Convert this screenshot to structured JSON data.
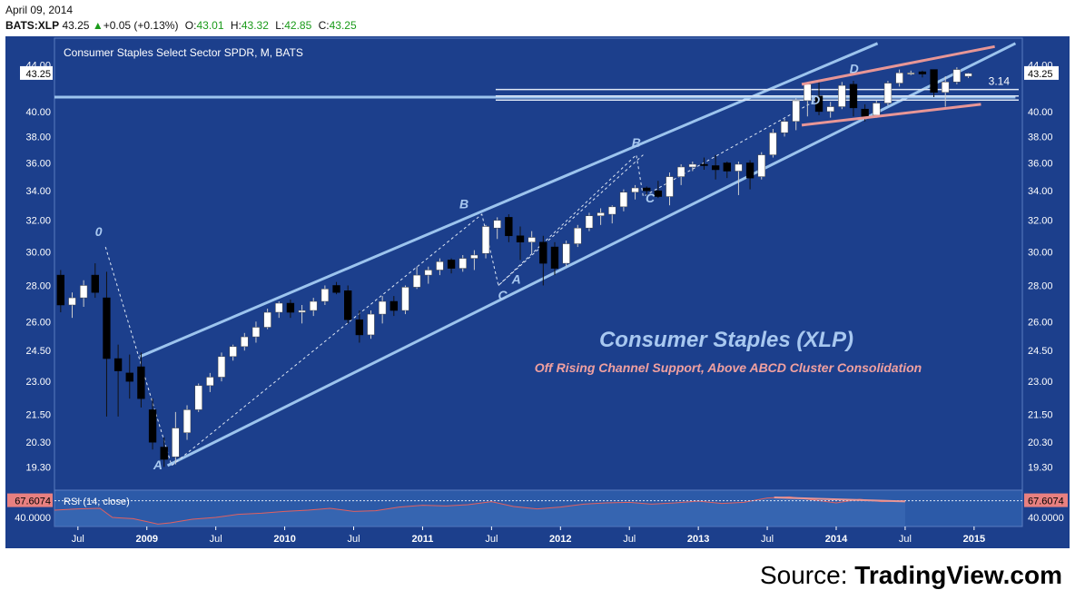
{
  "header": {
    "date": "April 09, 2014",
    "symbol": "BATS:XLP",
    "last": "43.25",
    "change": "+0.05 (+0.13%)",
    "open_label": "O:",
    "open": "43.01",
    "high_label": "H:",
    "high": "43.32",
    "low_label": "L:",
    "low": "42.85",
    "close_label": "C:",
    "close": "43.25"
  },
  "source": {
    "prefix": "Source: ",
    "name": "TradingView.com"
  },
  "colors": {
    "background": "#1c3f8c",
    "candle_up": "#ffffff",
    "candle_down": "#000000",
    "channel": "#9cc4ee",
    "wedge": "#e89696",
    "label_blue": "#a8c8f0",
    "label_pink": "#f0a0a0",
    "rsi_line": "#e06060",
    "quote_up": "#1a9a1a"
  },
  "chart_data": [
    {
      "type": "candlestick",
      "title": "Consumer Staples Select Sector SPDR, M, BATS",
      "last_price_label": "43.25",
      "y_axis": {
        "scale": "log",
        "ticks": [
          "19.30",
          "20.30",
          "21.50",
          "23.00",
          "24.50",
          "26.00",
          "28.00",
          "30.00",
          "32.00",
          "34.00",
          "36.00",
          "38.00",
          "40.00",
          "44.00"
        ],
        "range": [
          18.4,
          46.5
        ]
      },
      "x_axis": {
        "ticks": [
          "Jul",
          "2009",
          "Jul",
          "2010",
          "Jul",
          "2011",
          "Jul",
          "2012",
          "Jul",
          "2013",
          "Jul",
          "2014",
          "Jul",
          "2015"
        ],
        "tick_months": [
          2008.5,
          2009,
          2009.5,
          2010,
          2010.5,
          2011,
          2011.5,
          2012,
          2012.5,
          2013,
          2013.5,
          2014,
          2014.5,
          2015
        ],
        "range": [
          2008.33,
          2015.35
        ]
      },
      "candles": [
        {
          "t": "2008-05",
          "o": 28.6,
          "h": 28.9,
          "l": 26.5,
          "c": 26.9
        },
        {
          "t": "2008-06",
          "o": 26.9,
          "h": 27.6,
          "l": 26.2,
          "c": 27.3
        },
        {
          "t": "2008-07",
          "o": 27.3,
          "h": 28.3,
          "l": 26.8,
          "c": 28.0
        },
        {
          "t": "2008-08",
          "o": 28.6,
          "h": 29.3,
          "l": 27.3,
          "c": 27.6
        },
        {
          "t": "2008-09",
          "o": 27.3,
          "h": 28.8,
          "l": 21.4,
          "c": 24.1
        },
        {
          "t": "2008-10",
          "o": 24.1,
          "h": 24.8,
          "l": 21.4,
          "c": 23.5
        },
        {
          "t": "2008-11",
          "o": 23.4,
          "h": 24.3,
          "l": 22.2,
          "c": 23.0
        },
        {
          "t": "2008-12",
          "o": 23.7,
          "h": 24.4,
          "l": 21.8,
          "c": 22.2
        },
        {
          "t": "2009-01",
          "o": 21.7,
          "h": 22.2,
          "l": 20.0,
          "c": 20.3
        },
        {
          "t": "2009-02",
          "o": 20.1,
          "h": 20.5,
          "l": 19.3,
          "c": 19.6
        },
        {
          "t": "2009-03",
          "o": 19.7,
          "h": 21.6,
          "l": 19.4,
          "c": 20.9
        },
        {
          "t": "2009-04",
          "o": 20.7,
          "h": 21.9,
          "l": 20.4,
          "c": 21.7
        },
        {
          "t": "2009-05",
          "o": 21.7,
          "h": 22.9,
          "l": 21.6,
          "c": 22.8
        },
        {
          "t": "2009-06",
          "o": 22.8,
          "h": 23.4,
          "l": 22.5,
          "c": 23.2
        },
        {
          "t": "2009-07",
          "o": 23.2,
          "h": 24.4,
          "l": 23.0,
          "c": 24.2
        },
        {
          "t": "2009-08",
          "o": 24.2,
          "h": 24.8,
          "l": 24.0,
          "c": 24.7
        },
        {
          "t": "2009-09",
          "o": 24.7,
          "h": 25.4,
          "l": 24.5,
          "c": 25.2
        },
        {
          "t": "2009-10",
          "o": 25.2,
          "h": 26.0,
          "l": 24.9,
          "c": 25.7
        },
        {
          "t": "2009-11",
          "o": 25.7,
          "h": 26.7,
          "l": 25.6,
          "c": 26.5
        },
        {
          "t": "2009-12",
          "o": 26.5,
          "h": 27.1,
          "l": 26.2,
          "c": 27.0
        },
        {
          "t": "2010-01",
          "o": 27.0,
          "h": 27.2,
          "l": 26.2,
          "c": 26.5
        },
        {
          "t": "2010-02",
          "o": 26.5,
          "h": 26.9,
          "l": 25.9,
          "c": 26.6
        },
        {
          "t": "2010-03",
          "o": 26.6,
          "h": 27.3,
          "l": 26.3,
          "c": 27.1
        },
        {
          "t": "2010-04",
          "o": 27.1,
          "h": 28.0,
          "l": 26.9,
          "c": 27.8
        },
        {
          "t": "2010-05",
          "o": 28.0,
          "h": 28.2,
          "l": 27.5,
          "c": 27.6
        },
        {
          "t": "2010-06",
          "o": 27.7,
          "h": 28.0,
          "l": 25.9,
          "c": 26.1
        },
        {
          "t": "2010-07",
          "o": 26.1,
          "h": 26.6,
          "l": 24.9,
          "c": 25.3
        },
        {
          "t": "2010-08",
          "o": 25.3,
          "h": 26.6,
          "l": 25.1,
          "c": 26.4
        },
        {
          "t": "2010-09",
          "o": 26.4,
          "h": 27.4,
          "l": 25.9,
          "c": 27.1
        },
        {
          "t": "2010-10",
          "o": 27.1,
          "h": 27.4,
          "l": 26.3,
          "c": 26.6
        },
        {
          "t": "2010-11",
          "o": 26.6,
          "h": 28.0,
          "l": 26.4,
          "c": 27.9
        },
        {
          "t": "2010-12",
          "o": 27.9,
          "h": 29.1,
          "l": 27.8,
          "c": 28.6
        },
        {
          "t": "2011-01",
          "o": 28.6,
          "h": 29.1,
          "l": 28.1,
          "c": 28.9
        },
        {
          "t": "2011-02",
          "o": 28.9,
          "h": 29.6,
          "l": 28.6,
          "c": 29.4
        },
        {
          "t": "2011-03",
          "o": 29.5,
          "h": 29.6,
          "l": 28.7,
          "c": 29.0
        },
        {
          "t": "2011-04",
          "o": 29.0,
          "h": 29.8,
          "l": 28.8,
          "c": 29.6
        },
        {
          "t": "2011-05",
          "o": 29.6,
          "h": 30.1,
          "l": 28.9,
          "c": 29.8
        },
        {
          "t": "2011-06",
          "o": 29.9,
          "h": 31.7,
          "l": 29.6,
          "c": 31.6
        },
        {
          "t": "2011-07",
          "o": 31.5,
          "h": 32.2,
          "l": 30.8,
          "c": 32.0
        },
        {
          "t": "2011-08",
          "o": 32.2,
          "h": 32.4,
          "l": 30.6,
          "c": 31.0
        },
        {
          "t": "2011-09",
          "o": 31.0,
          "h": 31.6,
          "l": 29.5,
          "c": 30.6
        },
        {
          "t": "2011-10",
          "o": 30.6,
          "h": 31.3,
          "l": 29.9,
          "c": 30.9
        },
        {
          "t": "2011-11",
          "o": 30.6,
          "h": 31.0,
          "l": 28.0,
          "c": 29.3
        },
        {
          "t": "2011-12",
          "o": 30.3,
          "h": 30.6,
          "l": 28.6,
          "c": 29.0
        },
        {
          "t": "2012-01",
          "o": 29.3,
          "h": 30.7,
          "l": 29.1,
          "c": 30.5
        },
        {
          "t": "2012-02",
          "o": 30.5,
          "h": 31.7,
          "l": 30.3,
          "c": 31.5
        },
        {
          "t": "2012-03",
          "o": 31.5,
          "h": 32.5,
          "l": 31.3,
          "c": 32.3
        },
        {
          "t": "2012-04",
          "o": 32.3,
          "h": 32.8,
          "l": 31.7,
          "c": 32.5
        },
        {
          "t": "2012-05",
          "o": 32.4,
          "h": 33.0,
          "l": 31.8,
          "c": 32.9
        },
        {
          "t": "2012-06",
          "o": 32.9,
          "h": 34.1,
          "l": 32.6,
          "c": 33.9
        },
        {
          "t": "2012-07",
          "o": 33.9,
          "h": 34.4,
          "l": 33.4,
          "c": 34.2
        },
        {
          "t": "2012-08",
          "o": 34.2,
          "h": 34.3,
          "l": 33.7,
          "c": 34.0
        },
        {
          "t": "2012-09",
          "o": 34.0,
          "h": 34.7,
          "l": 33.5,
          "c": 33.6
        },
        {
          "t": "2012-10",
          "o": 33.6,
          "h": 35.3,
          "l": 33.0,
          "c": 35.0
        },
        {
          "t": "2012-11",
          "o": 35.0,
          "h": 35.9,
          "l": 34.4,
          "c": 35.7
        },
        {
          "t": "2012-12",
          "o": 35.7,
          "h": 36.1,
          "l": 35.4,
          "c": 35.9
        },
        {
          "t": "2013-01",
          "o": 35.9,
          "h": 36.4,
          "l": 35.5,
          "c": 35.8
        },
        {
          "t": "2013-02",
          "o": 35.8,
          "h": 36.6,
          "l": 34.8,
          "c": 35.5
        },
        {
          "t": "2013-03",
          "o": 36.0,
          "h": 36.1,
          "l": 34.9,
          "c": 35.4
        },
        {
          "t": "2013-04",
          "o": 35.4,
          "h": 36.1,
          "l": 33.7,
          "c": 35.9
        },
        {
          "t": "2013-05",
          "o": 36.0,
          "h": 36.2,
          "l": 34.1,
          "c": 34.9
        },
        {
          "t": "2013-06",
          "o": 35.0,
          "h": 36.8,
          "l": 34.8,
          "c": 36.6
        },
        {
          "t": "2013-07",
          "o": 36.6,
          "h": 38.6,
          "l": 36.4,
          "c": 38.3
        },
        {
          "t": "2013-08",
          "o": 38.3,
          "h": 39.4,
          "l": 38.0,
          "c": 39.2
        },
        {
          "t": "2013-09",
          "o": 39.2,
          "h": 41.1,
          "l": 38.5,
          "c": 40.9
        },
        {
          "t": "2013-10",
          "o": 40.9,
          "h": 42.5,
          "l": 39.6,
          "c": 42.3
        },
        {
          "t": "2013-11",
          "o": 41.3,
          "h": 42.6,
          "l": 39.7,
          "c": 40.0
        },
        {
          "t": "2013-12",
          "o": 40.0,
          "h": 40.8,
          "l": 39.5,
          "c": 40.4
        },
        {
          "t": "2014-01",
          "o": 40.4,
          "h": 42.5,
          "l": 40.2,
          "c": 42.2
        },
        {
          "t": "2014-02",
          "o": 42.3,
          "h": 42.6,
          "l": 39.6,
          "c": 40.3
        },
        {
          "t": "2014-03",
          "o": 40.2,
          "h": 40.6,
          "l": 39.2,
          "c": 39.6
        },
        {
          "t": "2014-04",
          "o": 39.7,
          "h": 40.9,
          "l": 39.5,
          "c": 40.7
        },
        {
          "t": "2014-05",
          "o": 40.7,
          "h": 42.6,
          "l": 40.5,
          "c": 42.4
        },
        {
          "t": "2014-06",
          "o": 42.4,
          "h": 43.6,
          "l": 42.1,
          "c": 43.3
        },
        {
          "t": "2014-07",
          "o": 43.3,
          "h": 43.5,
          "l": 43.1,
          "c": 43.3
        },
        {
          "t": "2014-08",
          "o": 43.4,
          "h": 43.5,
          "l": 42.9,
          "c": 43.2
        },
        {
          "t": "2014-09",
          "o": 43.6,
          "h": 43.6,
          "l": 41.2,
          "c": 41.6
        },
        {
          "t": "2014-10",
          "o": 41.6,
          "h": 43.0,
          "l": 40.4,
          "c": 42.5
        },
        {
          "t": "2014-11",
          "o": 42.5,
          "h": 43.8,
          "l": 42.3,
          "c": 43.6
        },
        {
          "t": "2014-12",
          "o": 43.0,
          "h": 43.3,
          "l": 42.85,
          "c": 43.25
        }
      ],
      "channel_lines": [
        {
          "name": "upper",
          "points": [
            [
              2008.95,
              24.2
            ],
            [
              2014.3,
              46.0
            ]
          ]
        },
        {
          "name": "lower",
          "points": [
            [
              2009.15,
              19.35
            ],
            [
              2015.3,
              46.0
            ]
          ]
        },
        {
          "name": "support",
          "points": [
            [
              2008.33,
              41.2
            ],
            [
              2015.3,
              41.2
            ]
          ]
        }
      ],
      "wedge_lines": [
        {
          "name": "upper",
          "points": [
            [
              2013.75,
              42.3
            ],
            [
              2015.15,
              45.7
            ]
          ]
        },
        {
          "name": "lower",
          "points": [
            [
              2013.75,
              38.9
            ],
            [
              2015.05,
              40.6
            ]
          ]
        }
      ],
      "fib_lines": [
        {
          "label": "3.14",
          "value": 41.85
        },
        {
          "label": "",
          "value": 41.3
        },
        {
          "label": "",
          "value": 40.95
        }
      ],
      "abcd_patterns": [
        {
          "points": [
            [
              "0",
              2008.7,
              30.3
            ],
            [
              "A",
              2009.18,
              19.35
            ],
            [
              "B",
              2011.43,
              32.4
            ],
            [
              "C",
              2011.55,
              28.0
            ],
            [
              "D",
              2012.6,
              36.6
            ]
          ]
        },
        {
          "points": [
            [
              "A",
              2011.55,
              28.0
            ],
            [
              "B",
              2012.55,
              36.6
            ],
            [
              "C",
              2012.6,
              33.6
            ],
            [
              "D",
              2013.85,
              40.9
            ]
          ]
        }
      ],
      "wave_labels": [
        {
          "text": "0",
          "x": 2008.65,
          "y": 31.0
        },
        {
          "text": "A",
          "x": 2009.08,
          "y": 19.2
        },
        {
          "text": "B",
          "x": 2011.3,
          "y": 32.8
        },
        {
          "text": "A",
          "x": 2011.68,
          "y": 28.1
        },
        {
          "text": "C",
          "x": 2011.58,
          "y": 27.2
        },
        {
          "text": "B",
          "x": 2012.55,
          "y": 37.2
        },
        {
          "text": "C",
          "x": 2012.65,
          "y": 33.2
        },
        {
          "text": "D",
          "x": 2013.85,
          "y": 40.6
        },
        {
          "text": "D",
          "x": 2014.13,
          "y": 43.3
        }
      ],
      "annotations": {
        "main": "Consumer Staples (XLP)",
        "sub": "Off Rising Channel Support, Above ABCD Cluster Consolidation"
      }
    },
    {
      "type": "line",
      "title": "RSI (14, close)",
      "last_value_label": "67.6074",
      "y_ticks": [
        "40.0000"
      ],
      "y_range": [
        25,
        82
      ],
      "x_range": [
        2008.33,
        2015.35
      ],
      "rsi": [
        [
          2008.33,
          52
        ],
        [
          2008.5,
          54
        ],
        [
          2008.66,
          55
        ],
        [
          2008.75,
          40
        ],
        [
          2008.9,
          38
        ],
        [
          2009.0,
          33
        ],
        [
          2009.08,
          29
        ],
        [
          2009.17,
          31
        ],
        [
          2009.33,
          37
        ],
        [
          2009.5,
          40
        ],
        [
          2009.66,
          45
        ],
        [
          2009.83,
          47
        ],
        [
          2010.0,
          50
        ],
        [
          2010.17,
          52
        ],
        [
          2010.33,
          55
        ],
        [
          2010.5,
          50
        ],
        [
          2010.66,
          51
        ],
        [
          2010.83,
          57
        ],
        [
          2011.0,
          60
        ],
        [
          2011.17,
          59
        ],
        [
          2011.33,
          61
        ],
        [
          2011.5,
          66
        ],
        [
          2011.66,
          58
        ],
        [
          2011.83,
          54
        ],
        [
          2012.0,
          57
        ],
        [
          2012.17,
          62
        ],
        [
          2012.33,
          64
        ],
        [
          2012.5,
          65
        ],
        [
          2012.66,
          62
        ],
        [
          2012.83,
          64
        ],
        [
          2013.0,
          67
        ],
        [
          2013.17,
          63
        ],
        [
          2013.33,
          65
        ],
        [
          2013.5,
          72
        ],
        [
          2013.66,
          74
        ],
        [
          2013.83,
          69
        ],
        [
          2014.0,
          64
        ],
        [
          2014.17,
          70
        ],
        [
          2014.33,
          66
        ],
        [
          2014.5,
          67.6
        ]
      ],
      "trend_line": [
        [
          2013.55,
          73
        ],
        [
          2014.5,
          66.5
        ]
      ]
    }
  ]
}
